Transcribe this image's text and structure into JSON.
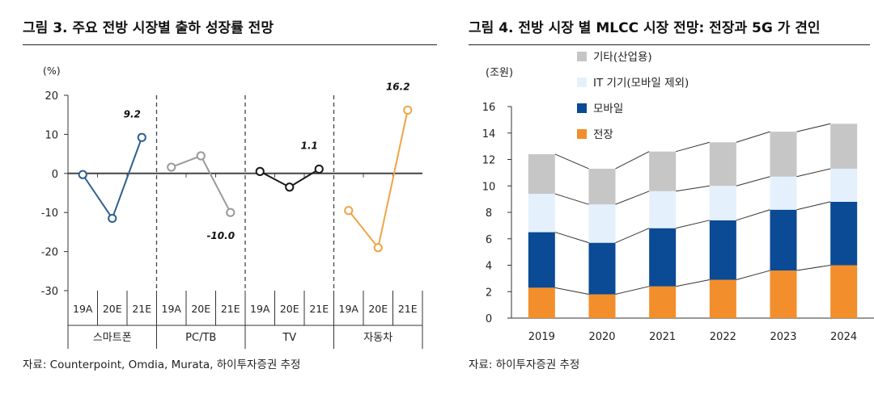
{
  "left_figure": {
    "title": "그림 3. 주요 전방 시장별 출하 성장률 전망",
    "source": "자료: Counterpoint, Omdia, Murata, 하이투자증권 추정"
  },
  "right_figure": {
    "title": "그림 4. 전방 시장 별 MLCC 시장 전망: 전장과 5G 가 견인",
    "source": "자료: 하이투자증권 추정"
  },
  "chart_data": [
    {
      "type": "line",
      "title": "주요 전방 시장별 출하 성장률 전망",
      "ylabel": "(%)",
      "ylim": [
        -30,
        20
      ],
      "yticks": [
        20,
        10,
        0,
        -10,
        -20,
        -30
      ],
      "ytick_labels": [
        "20",
        "10",
        "0",
        "-10",
        "-20",
        "-30"
      ],
      "x_labels": [
        "19A",
        "20E",
        "21E"
      ],
      "series": [
        {
          "name": "스마트폰",
          "x": [
            "19A",
            "20E",
            "21E"
          ],
          "values": [
            -0.3,
            -11.5,
            9.2
          ],
          "color": "#2f5f8f",
          "annotation": "9.2",
          "annotation_index": 2
        },
        {
          "name": "PC/TB",
          "x": [
            "19A",
            "20E",
            "21E"
          ],
          "values": [
            1.6,
            4.5,
            -10.0
          ],
          "color": "#9a9a9a",
          "annotation": "-10.0",
          "annotation_index": 2
        },
        {
          "name": "TV",
          "x": [
            "19A",
            "20E",
            "21E"
          ],
          "values": [
            0.5,
            -3.5,
            1.1
          ],
          "color": "#1a1a1a",
          "annotation": "1.1",
          "annotation_index": 2
        },
        {
          "name": "자동차",
          "x": [
            "19A",
            "20E",
            "21E"
          ],
          "values": [
            -9.5,
            -19.0,
            16.2
          ],
          "color": "#f0a444",
          "annotation": "16.2",
          "annotation_index": 2
        }
      ]
    },
    {
      "type": "bar",
      "stacked": true,
      "title": "전방 시장 별 MLCC 시장 전망: 전장과 5G 가 견인",
      "ylabel": "(조원)",
      "ylim": [
        0,
        16
      ],
      "yticks": [
        0,
        2,
        4,
        6,
        8,
        10,
        12,
        14,
        16
      ],
      "ytick_labels": [
        "0",
        "2",
        "4",
        "6",
        "8",
        "10",
        "12",
        "14",
        "16"
      ],
      "categories": [
        "2019",
        "2020",
        "2021",
        "2022",
        "2023",
        "2024"
      ],
      "series": [
        {
          "name": "전장",
          "color": "#f28e2b",
          "values": [
            2.3,
            1.8,
            2.4,
            2.9,
            3.6,
            4.0
          ]
        },
        {
          "name": "모바일",
          "color": "#0b4a94",
          "values": [
            4.2,
            3.9,
            4.4,
            4.5,
            4.6,
            4.8
          ]
        },
        {
          "name": "IT 기기(모바일 제외)",
          "color": "#e4f1fc",
          "values": [
            2.9,
            2.9,
            2.8,
            2.6,
            2.5,
            2.5
          ]
        },
        {
          "name": "기타(산업용)",
          "color": "#c6c6c6",
          "values": [
            3.0,
            2.7,
            3.0,
            3.3,
            3.4,
            3.4
          ]
        }
      ],
      "legend": [
        "기타(산업용)",
        "IT 기기(모바일 제외)",
        "모바일",
        "전장"
      ],
      "legend_position": "top-left"
    }
  ]
}
